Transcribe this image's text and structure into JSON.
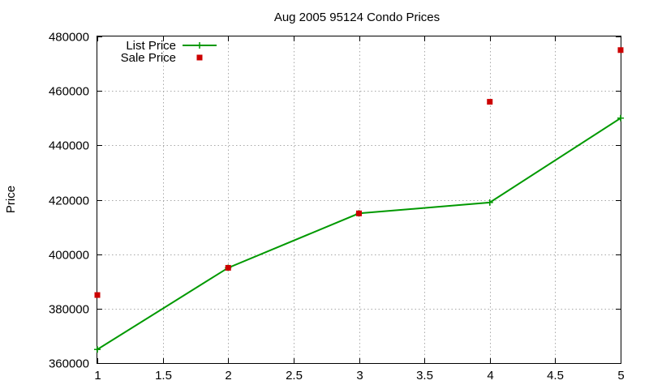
{
  "chart_data": {
    "type": "line",
    "title": "Aug 2005 95124 Condo Prices",
    "xlabel": "",
    "ylabel": "Price",
    "xlim": [
      1,
      5
    ],
    "ylim": [
      360000,
      480000
    ],
    "xticks": [
      "1",
      "1.5",
      "2",
      "2.5",
      "3",
      "3.5",
      "4",
      "4.5",
      "5"
    ],
    "yticks": [
      "360000",
      "380000",
      "400000",
      "420000",
      "440000",
      "460000",
      "480000"
    ],
    "grid": true,
    "legend_position": "top-left",
    "series": [
      {
        "name": "List Price",
        "style": "linespoints",
        "marker": "plus",
        "color": "#009900",
        "x": [
          1,
          2,
          3,
          4,
          5
        ],
        "y": [
          365000,
          395000,
          415000,
          419000,
          450000
        ]
      },
      {
        "name": "Sale Price",
        "style": "points",
        "marker": "square",
        "color": "#cc0000",
        "x": [
          1,
          2,
          3,
          4,
          5
        ],
        "y": [
          385000,
          395000,
          415000,
          456000,
          475000
        ]
      }
    ]
  }
}
